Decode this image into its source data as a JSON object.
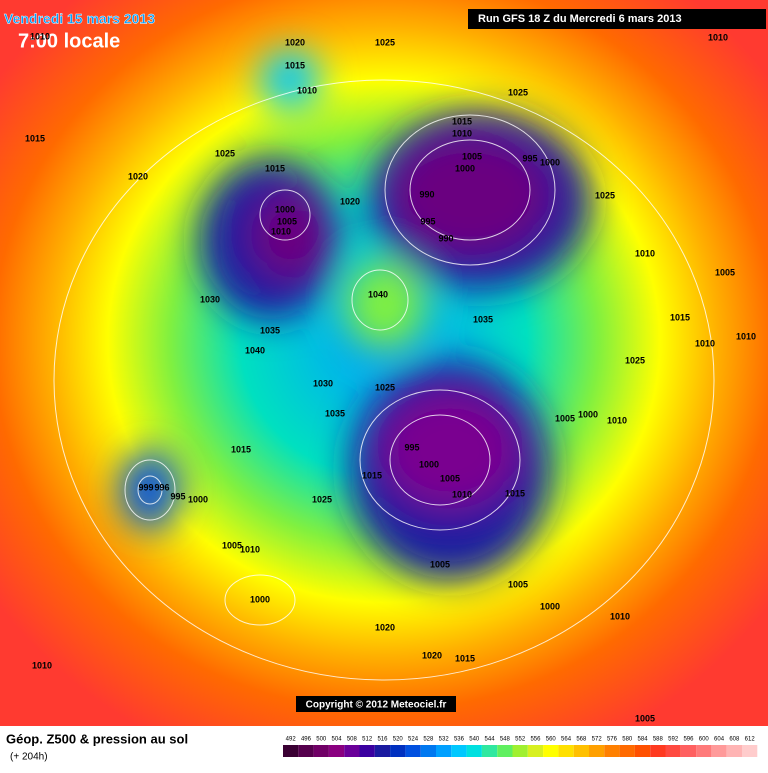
{
  "header": {
    "date": "Vendredi 15 mars 2013",
    "time": "7:00 locale",
    "run": "Run GFS 18 Z du Mercredi 6 mars 2013"
  },
  "map": {
    "isobar_labels": [
      "1010",
      "1020",
      "1025",
      "1010",
      "1015",
      "1010",
      "1025",
      "1015",
      "1010",
      "1015",
      "1005",
      "1000",
      "995",
      "1000",
      "1025",
      "1015",
      "1020",
      "990",
      "1025",
      "1000",
      "1005",
      "1010",
      "1020",
      "995",
      "990",
      "1010",
      "1005",
      "1040",
      "1030",
      "1035",
      "1015",
      "1035",
      "1040",
      "1010",
      "1010",
      "1025",
      "1030",
      "1025",
      "1035",
      "1005",
      "1000",
      "1010",
      "995",
      "1015",
      "1000",
      "1005",
      "1015",
      "999",
      "996",
      "995",
      "1010",
      "1015",
      "1000",
      "1025",
      "1005",
      "1010",
      "1005",
      "1005",
      "1000",
      "1000",
      "1010",
      "1020",
      "1020",
      "1015",
      "1010",
      "1005"
    ],
    "copyright": "Copyright © 2012 Meteociel.fr"
  },
  "footer": {
    "title": "Géop. Z500 & pression au sol",
    "lead": "(+ 204h)",
    "legend": {
      "values": [
        492,
        496,
        500,
        504,
        508,
        512,
        516,
        520,
        524,
        528,
        532,
        536,
        540,
        544,
        548,
        552,
        556,
        560,
        564,
        568,
        572,
        576,
        580,
        584,
        588,
        592,
        596,
        600,
        604,
        608,
        612
      ],
      "colors": [
        "#3a0033",
        "#55004d",
        "#700066",
        "#8a0080",
        "#6a0099",
        "#3a00a0",
        "#1a1aa0",
        "#0030c0",
        "#0050e0",
        "#0078f0",
        "#00a0ff",
        "#00c8ff",
        "#00e0e0",
        "#30e8a0",
        "#60f060",
        "#a0f030",
        "#d8f020",
        "#ffff00",
        "#ffe000",
        "#ffc000",
        "#ffa000",
        "#ff8000",
        "#ff6a00",
        "#ff5000",
        "#ff3a20",
        "#ff4a40",
        "#ff6060",
        "#ff7a7a",
        "#ff9a9a",
        "#ffb4b4",
        "#ffcccc"
      ]
    }
  }
}
